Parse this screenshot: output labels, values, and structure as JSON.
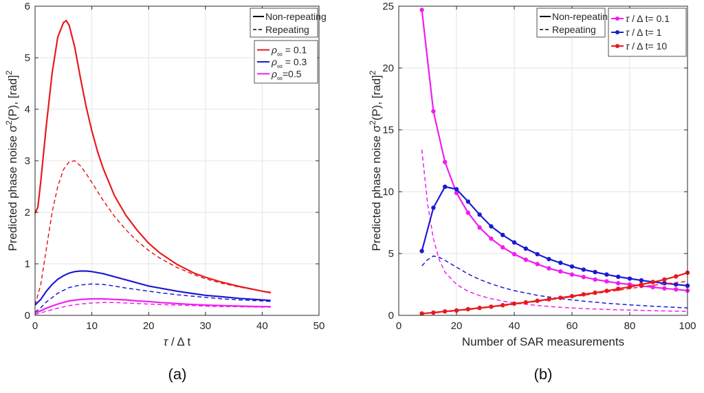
{
  "chart_data": [
    {
      "type": "line",
      "panel_label": "(a)",
      "xlabel_symbol": "τ",
      "xlabel_suffix": " / Δ t",
      "ylabel_text": "Predicted phase noise σ",
      "ylabel_sup": "2",
      "ylabel_tail": "(P), [rad]",
      "ylabel_tail_sup": "2",
      "xlim": [
        0,
        50
      ],
      "ylim": [
        0,
        6
      ],
      "xticks": [
        "0",
        "10",
        "20",
        "30",
        "40",
        "50"
      ],
      "yticks": [
        "0",
        "1",
        "2",
        "3",
        "4",
        "5",
        "6"
      ],
      "grid": true,
      "linestyle_legend": {
        "placement": "top-right",
        "entries": [
          {
            "label": "Non-repeating",
            "style": "solid"
          },
          {
            "label": "Repeating",
            "style": "dashed"
          }
        ]
      },
      "color_legend": {
        "placement": "top-right",
        "entries": [
          {
            "symbol": "ρ",
            "sub": "∞",
            "text": " = 0.1",
            "color": "#e8191c"
          },
          {
            "symbol": "ρ",
            "sub": "∞",
            "text": " = 0.3",
            "color": "#1a1ad4"
          },
          {
            "symbol": "ρ",
            "sub": "∞",
            "text": "=0.5",
            "color": "#f01cf0"
          }
        ]
      },
      "series": [
        {
          "color": "#e8191c",
          "style": "solid",
          "x": [
            0,
            0.5,
            1,
            2,
            3,
            4,
            5,
            5.5,
            6,
            7,
            8,
            9,
            10,
            11,
            12,
            14,
            16,
            18,
            20,
            22,
            25,
            28,
            30,
            33,
            36,
            40,
            41.5
          ],
          "y": [
            1.98,
            2.1,
            2.6,
            3.7,
            4.7,
            5.4,
            5.68,
            5.72,
            5.63,
            5.2,
            4.6,
            4.05,
            3.58,
            3.18,
            2.85,
            2.32,
            1.94,
            1.65,
            1.4,
            1.21,
            0.99,
            0.82,
            0.74,
            0.64,
            0.56,
            0.47,
            0.44
          ]
        },
        {
          "color": "#e8191c",
          "style": "dashed",
          "x": [
            0,
            1,
            2,
            3,
            4,
            5,
            6,
            7,
            8,
            9,
            10,
            12,
            14,
            16,
            18,
            20,
            22,
            25,
            28,
            30,
            33,
            36,
            40,
            41.5
          ],
          "y": [
            0.2,
            0.6,
            1.3,
            2.0,
            2.5,
            2.83,
            2.98,
            3.0,
            2.9,
            2.75,
            2.58,
            2.23,
            1.92,
            1.66,
            1.44,
            1.26,
            1.11,
            0.93,
            0.79,
            0.71,
            0.62,
            0.55,
            0.47,
            0.45
          ]
        },
        {
          "color": "#1a1ad4",
          "style": "solid",
          "x": [
            0,
            1,
            2,
            3,
            4,
            5,
            6,
            7,
            8,
            9,
            10,
            12,
            14,
            16,
            18,
            20,
            22,
            25,
            28,
            30,
            33,
            36,
            40,
            41.5
          ],
          "y": [
            0.2,
            0.31,
            0.47,
            0.6,
            0.7,
            0.77,
            0.82,
            0.85,
            0.86,
            0.86,
            0.85,
            0.81,
            0.75,
            0.69,
            0.63,
            0.57,
            0.53,
            0.47,
            0.42,
            0.39,
            0.36,
            0.33,
            0.3,
            0.29
          ]
        },
        {
          "color": "#1a1ad4",
          "style": "dashed",
          "x": [
            0,
            1,
            2,
            4,
            6,
            8,
            10,
            12,
            14,
            16,
            18,
            20,
            22,
            25,
            28,
            30,
            33,
            36,
            40,
            41.5
          ],
          "y": [
            0.06,
            0.15,
            0.26,
            0.43,
            0.54,
            0.59,
            0.61,
            0.6,
            0.57,
            0.53,
            0.5,
            0.47,
            0.44,
            0.4,
            0.37,
            0.35,
            0.32,
            0.3,
            0.28,
            0.27
          ]
        },
        {
          "color": "#f01cf0",
          "style": "solid",
          "x": [
            0,
            1,
            2,
            4,
            6,
            8,
            10,
            12,
            14,
            16,
            18,
            20,
            22,
            25,
            28,
            30,
            33,
            36,
            40,
            41.5
          ],
          "y": [
            0.05,
            0.09,
            0.14,
            0.22,
            0.28,
            0.31,
            0.32,
            0.32,
            0.31,
            0.3,
            0.28,
            0.27,
            0.25,
            0.23,
            0.21,
            0.2,
            0.19,
            0.18,
            0.17,
            0.17
          ]
        },
        {
          "color": "#f01cf0",
          "style": "dashed",
          "x": [
            0,
            1,
            2,
            4,
            6,
            8,
            10,
            12,
            14,
            16,
            18,
            20,
            22,
            25,
            28,
            30,
            33,
            36,
            40,
            41.5
          ],
          "y": [
            0.02,
            0.05,
            0.08,
            0.14,
            0.19,
            0.22,
            0.24,
            0.25,
            0.25,
            0.24,
            0.23,
            0.22,
            0.21,
            0.2,
            0.19,
            0.18,
            0.17,
            0.17,
            0.16,
            0.16
          ]
        }
      ]
    },
    {
      "type": "line",
      "panel_label": "(b)",
      "xlabel": "Number of SAR measurements",
      "ylabel_text": "Predicted phase noise σ",
      "ylabel_sup": "2",
      "ylabel_tail": "(P), [rad]",
      "ylabel_tail_sup": "2",
      "xlim": [
        0,
        100
      ],
      "ylim": [
        0,
        25
      ],
      "xticks": [
        "0",
        "20",
        "40",
        "60",
        "80",
        "100"
      ],
      "yticks": [
        "0",
        "5",
        "10",
        "15",
        "20",
        "25"
      ],
      "grid": true,
      "linestyle_legend": {
        "placement": "top-right",
        "entries": [
          {
            "label": "Non-repeating",
            "style": "solid"
          },
          {
            "label": "Repeating",
            "style": "dashed"
          }
        ]
      },
      "color_legend": {
        "placement": "top-right",
        "entries": [
          {
            "symbol": "τ",
            "text": " / Δ t= 0.1",
            "color": "#f01cf0"
          },
          {
            "symbol": "τ",
            "text": " / Δ t= 1",
            "color": "#1a1ad4"
          },
          {
            "symbol": "τ",
            "text": " / Δ t= 10",
            "color": "#e8191c"
          }
        ]
      },
      "series": [
        {
          "color": "#f01cf0",
          "style": "solid",
          "markers": true,
          "x": [
            8,
            12,
            16,
            20,
            24,
            28,
            32,
            36,
            40,
            44,
            48,
            52,
            56,
            60,
            64,
            68,
            72,
            76,
            80,
            84,
            88,
            92,
            96,
            100
          ],
          "y": [
            24.7,
            16.5,
            12.4,
            9.9,
            8.3,
            7.1,
            6.2,
            5.5,
            4.95,
            4.5,
            4.15,
            3.8,
            3.55,
            3.3,
            3.1,
            2.9,
            2.75,
            2.6,
            2.5,
            2.38,
            2.28,
            2.18,
            2.1,
            2.0
          ]
        },
        {
          "color": "#f01cf0",
          "style": "dashed",
          "x": [
            8,
            10,
            12,
            14,
            16,
            20,
            24,
            28,
            32,
            36,
            40,
            48,
            56,
            64,
            72,
            80,
            88,
            100
          ],
          "y": [
            13.4,
            9.0,
            6.2,
            4.5,
            3.5,
            2.5,
            1.95,
            1.6,
            1.35,
            1.15,
            1.0,
            0.8,
            0.65,
            0.55,
            0.48,
            0.42,
            0.38,
            0.32
          ]
        },
        {
          "color": "#1a1ad4",
          "style": "solid",
          "markers": true,
          "x": [
            8,
            12,
            16,
            20,
            24,
            28,
            32,
            36,
            40,
            44,
            48,
            52,
            56,
            60,
            64,
            68,
            72,
            76,
            80,
            84,
            88,
            92,
            96,
            100
          ],
          "y": [
            5.2,
            8.7,
            10.4,
            10.2,
            9.2,
            8.15,
            7.2,
            6.5,
            5.9,
            5.4,
            4.95,
            4.55,
            4.25,
            3.95,
            3.7,
            3.5,
            3.3,
            3.12,
            2.97,
            2.83,
            2.7,
            2.6,
            2.5,
            2.4
          ]
        },
        {
          "color": "#1a1ad4",
          "style": "dashed",
          "x": [
            8,
            10,
            12,
            14,
            16,
            20,
            24,
            28,
            32,
            36,
            40,
            48,
            56,
            64,
            72,
            80,
            88,
            100
          ],
          "y": [
            4.0,
            4.5,
            4.8,
            4.7,
            4.45,
            3.9,
            3.35,
            2.9,
            2.55,
            2.25,
            2.0,
            1.62,
            1.35,
            1.15,
            0.98,
            0.85,
            0.74,
            0.6
          ]
        },
        {
          "color": "#e8191c",
          "style": "solid",
          "markers": true,
          "x": [
            8,
            12,
            16,
            20,
            24,
            28,
            32,
            36,
            40,
            44,
            48,
            52,
            56,
            60,
            64,
            68,
            72,
            76,
            80,
            84,
            88,
            92,
            96,
            100
          ],
          "y": [
            0.15,
            0.22,
            0.32,
            0.4,
            0.5,
            0.6,
            0.7,
            0.82,
            0.95,
            1.05,
            1.18,
            1.3,
            1.42,
            1.55,
            1.7,
            1.83,
            1.98,
            2.15,
            2.3,
            2.5,
            2.68,
            2.9,
            3.15,
            3.45
          ]
        },
        {
          "color": "#e8191c",
          "style": "dashed",
          "x": [
            8,
            12,
            16,
            20,
            24,
            28,
            32,
            36,
            40,
            44,
            48,
            52,
            56,
            60,
            64,
            68,
            72,
            76,
            80,
            84,
            88,
            92,
            96,
            100
          ],
          "y": [
            0.13,
            0.2,
            0.28,
            0.37,
            0.46,
            0.56,
            0.67,
            0.78,
            0.9,
            1.01,
            1.13,
            1.25,
            1.37,
            1.5,
            1.63,
            1.76,
            1.9,
            2.03,
            2.17,
            2.3,
            2.43,
            2.55,
            2.65,
            2.75
          ]
        }
      ]
    }
  ]
}
